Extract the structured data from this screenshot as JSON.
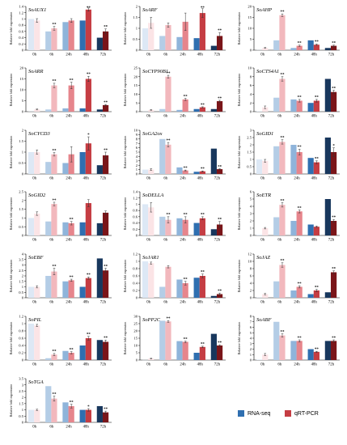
{
  "legend": {
    "rnaseq_label": "RNA-seq",
    "qrtpcr_label": "qRT-PCR"
  },
  "colors": {
    "rna": [
      "#dde8f5",
      "#b4cde6",
      "#8fb4da",
      "#2f6fb0",
      "#18375d"
    ],
    "qpcr": [
      "#fbe4e6",
      "#f2b8bd",
      "#e6858c",
      "#c53d43",
      "#7a1519"
    ]
  },
  "chart_data": [
    {
      "type": "bar",
      "gene": "SoAUX1",
      "categories": [
        "0h",
        "6h",
        "24h",
        "48h",
        "72h"
      ],
      "ylabel": "Relative fold expression",
      "ylim": [
        0,
        1.4
      ],
      "yticks": [
        0,
        0.2,
        0.4,
        0.6,
        0.8,
        1,
        1.2,
        1.4
      ],
      "ytick_labels": [
        "0",
        "0.2",
        "0.4",
        "0.6",
        "0.8",
        "1",
        "1.2",
        "1.4"
      ],
      "series": [
        {
          "name": "RNA-seq",
          "values": [
            1.0,
            0.6,
            0.9,
            0.95,
            0.4
          ]
        },
        {
          "name": "qRT-PCR",
          "values": [
            0.95,
            0.7,
            0.95,
            1.3,
            0.6
          ]
        }
      ],
      "errors": [
        0.06,
        0.06,
        0.06,
        0.05,
        0.08
      ],
      "sig": [
        "",
        "**",
        "",
        "**",
        "**"
      ]
    },
    {
      "type": "bar",
      "gene": "SoARF",
      "categories": [
        "0h",
        "6h",
        "24h",
        "48h",
        "72h"
      ],
      "ylabel": "Relative fold expression",
      "ylim": [
        0,
        2
      ],
      "yticks": [
        0,
        0.5,
        1,
        1.5,
        2
      ],
      "ytick_labels": [
        "0",
        "0.5",
        "1",
        "1.5",
        "2"
      ],
      "series": [
        {
          "name": "RNA-seq",
          "values": [
            1.0,
            0.65,
            0.6,
            0.55,
            0.2
          ]
        },
        {
          "name": "qRT-PCR",
          "values": [
            1.25,
            1.15,
            1.3,
            1.7,
            0.65
          ]
        }
      ],
      "errors": [
        0.25,
        0.1,
        0.4,
        0.2,
        0.15
      ],
      "sig": [
        "",
        "",
        "",
        "**",
        "**"
      ]
    },
    {
      "type": "bar",
      "gene": "SoAHP",
      "categories": [
        "0h",
        "6h",
        "24h",
        "48h",
        "72h"
      ],
      "ylabel": "Relative fold expression",
      "ylim": [
        0,
        20
      ],
      "yticks": [
        0,
        5,
        10,
        15,
        20
      ],
      "ytick_labels": [
        "0",
        "5",
        "10",
        "15",
        "20"
      ],
      "series": [
        {
          "name": "RNA-seq",
          "values": [
            0.1,
            4.5,
            1.0,
            4.5,
            1.0
          ]
        },
        {
          "name": "qRT-PCR",
          "values": [
            1.0,
            16.0,
            2.0,
            2.5,
            2.0
          ]
        }
      ],
      "errors": [
        0.2,
        0.6,
        0.3,
        0.3,
        0.3
      ],
      "sig": [
        "",
        "**",
        "**",
        "**",
        "**"
      ]
    },
    {
      "type": "bar",
      "gene": "SoARR",
      "categories": [
        "0h",
        "6h",
        "24h",
        "48h",
        "72h"
      ],
      "ylabel": "Relative fold expression",
      "ylim": [
        0,
        20
      ],
      "yticks": [
        0,
        5,
        10,
        15,
        20
      ],
      "ytick_labels": [
        "0",
        "5",
        "10",
        "15",
        "20"
      ],
      "series": [
        {
          "name": "RNA-seq",
          "values": [
            0.1,
            1.0,
            1.5,
            1.5,
            1.0
          ]
        },
        {
          "name": "qRT-PCR",
          "values": [
            1.0,
            12.0,
            12.0,
            15.0,
            3.0
          ]
        }
      ],
      "errors": [
        0.2,
        1.0,
        1.5,
        1.2,
        0.3
      ],
      "sig": [
        "",
        "**",
        "**",
        "**",
        "**"
      ]
    },
    {
      "type": "bar",
      "gene": "SoCYP90B1",
      "categories": [
        "0h",
        "6h",
        "24h",
        "48h",
        "72h"
      ],
      "ylabel": "Relative fold expression",
      "ylim": [
        0,
        25
      ],
      "yticks": [
        0,
        5,
        10,
        15,
        20,
        25
      ],
      "ytick_labels": [
        "0",
        "5",
        "10",
        "15",
        "20",
        "25"
      ],
      "series": [
        {
          "name": "RNA-seq",
          "values": [
            0.1,
            1.5,
            1.0,
            1.5,
            1.5
          ]
        },
        {
          "name": "qRT-PCR",
          "values": [
            1.0,
            20.0,
            7.0,
            2.5,
            6.0
          ]
        }
      ],
      "errors": [
        0.2,
        0.8,
        0.6,
        0.3,
        0.5
      ],
      "sig": [
        "",
        "**",
        "**",
        "**",
        "**"
      ]
    },
    {
      "type": "bar",
      "gene": "SoCTS4A1",
      "categories": [
        "0h",
        "6h",
        "24h",
        "48h",
        "72h"
      ],
      "ylabel": "Relative fold expression",
      "ylim": [
        0,
        10
      ],
      "yticks": [
        0,
        2,
        4,
        6,
        8,
        10
      ],
      "ytick_labels": [
        "0",
        "2",
        "4",
        "6",
        "8",
        "10"
      ],
      "series": [
        {
          "name": "RNA-seq",
          "values": [
            0.1,
            3.2,
            2.8,
            2.0,
            7.5
          ]
        },
        {
          "name": "qRT-PCR",
          "values": [
            1.0,
            7.5,
            2.5,
            2.5,
            4.5
          ]
        }
      ],
      "errors": [
        0.3,
        0.5,
        0.3,
        0.3,
        0.4
      ],
      "sig": [
        "",
        "**",
        "**",
        "**",
        "**"
      ]
    },
    {
      "type": "bar",
      "gene": "SoCYCD3",
      "categories": [
        "0h",
        "6h",
        "24h",
        "48h",
        "72h"
      ],
      "ylabel": "Relative fold expression",
      "ylim": [
        0,
        2
      ],
      "yticks": [
        0,
        0.5,
        1,
        1.5,
        2
      ],
      "ytick_labels": [
        "0",
        "0.5",
        "1",
        "1.5",
        "2"
      ],
      "series": [
        {
          "name": "RNA-seq",
          "values": [
            1.0,
            0.55,
            0.5,
            1.0,
            0.4
          ]
        },
        {
          "name": "qRT-PCR",
          "values": [
            1.0,
            0.9,
            0.9,
            1.4,
            0.85
          ]
        }
      ],
      "errors": [
        0.1,
        0.08,
        0.35,
        0.3,
        0.15
      ],
      "sig": [
        "",
        "**",
        "",
        "*",
        "**"
      ]
    },
    {
      "type": "bar",
      "gene": "SoGA2ox",
      "categories": [
        "0h",
        "6h",
        "24h",
        "48h",
        "72h"
      ],
      "ylabel": "Relative fold expression",
      "ylim": [
        0,
        10
      ],
      "yticks": [
        0,
        1,
        2,
        3,
        4,
        5,
        6,
        7,
        8,
        9,
        10
      ],
      "ytick_labels": [
        "0",
        "1",
        "2",
        "3",
        "4",
        "5",
        "6",
        "7",
        "8",
        "9",
        "10"
      ],
      "series": [
        {
          "name": "RNA-seq",
          "values": [
            1.0,
            8.0,
            1.5,
            0.5,
            5.8
          ]
        },
        {
          "name": "qRT-PCR",
          "values": [
            1.0,
            6.7,
            0.8,
            0.6,
            1.1
          ]
        }
      ],
      "errors": [
        0.2,
        0.5,
        0.1,
        0.1,
        0.1
      ],
      "sig": [
        "",
        "**",
        "**",
        "**",
        "**"
      ]
    },
    {
      "type": "bar",
      "gene": "SoGID1",
      "categories": [
        "0h",
        "6h",
        "24h",
        "48h",
        "72h"
      ],
      "ylabel": "Relative fold expression",
      "ylim": [
        0,
        3
      ],
      "yticks": [
        0,
        0.5,
        1,
        1.5,
        2,
        2.5,
        3
      ],
      "ytick_labels": [
        "0",
        "0.5",
        "1",
        "1.5",
        "2",
        "2.5",
        "3"
      ],
      "series": [
        {
          "name": "RNA-seq",
          "values": [
            1.0,
            1.9,
            2.0,
            1.1,
            2.5
          ]
        },
        {
          "name": "qRT-PCR",
          "values": [
            0.9,
            2.2,
            1.5,
            0.8,
            1.5
          ]
        }
      ],
      "errors": [
        0.1,
        0.15,
        0.2,
        0.1,
        0.3
      ],
      "sig": [
        "",
        "**",
        "**",
        "**",
        "*"
      ]
    },
    {
      "type": "bar",
      "gene": "SoGID2",
      "categories": [
        "0h",
        "6h",
        "24h",
        "48h",
        "72h"
      ],
      "ylabel": "Relative fold expression",
      "ylim": [
        0,
        2.5
      ],
      "yticks": [
        0,
        0.5,
        1,
        1.5,
        2,
        2.5
      ],
      "ytick_labels": [
        "0",
        "0.5",
        "1",
        "1.5",
        "2",
        "2.5"
      ],
      "series": [
        {
          "name": "RNA-seq",
          "values": [
            1.0,
            0.8,
            0.75,
            0.75,
            0.7
          ]
        },
        {
          "name": "qRT-PCR",
          "values": [
            1.25,
            1.8,
            0.7,
            1.85,
            1.3
          ]
        }
      ],
      "errors": [
        0.1,
        0.1,
        0.1,
        0.2,
        0.1
      ],
      "sig": [
        "",
        "**",
        "**",
        "",
        ""
      ]
    },
    {
      "type": "bar",
      "gene": "SoDELLA",
      "categories": [
        "0h",
        "6h",
        "24h",
        "48h",
        "72h"
      ],
      "ylabel": "Relative fold expression",
      "ylim": [
        0,
        1.4
      ],
      "yticks": [
        0,
        0.2,
        0.4,
        0.6,
        0.8,
        1,
        1.2,
        1.4
      ],
      "ytick_labels": [
        "0",
        "0.2",
        "0.4",
        "0.6",
        "0.8",
        "1",
        "1.2",
        "1.4"
      ],
      "series": [
        {
          "name": "RNA-seq",
          "values": [
            1.0,
            0.6,
            0.55,
            0.4,
            0.2
          ]
        },
        {
          "name": "qRT-PCR",
          "values": [
            0.9,
            0.5,
            0.5,
            0.55,
            0.35
          ]
        }
      ],
      "errors": [
        0.15,
        0.1,
        0.1,
        0.05,
        0.1
      ],
      "sig": [
        "",
        "**",
        "**",
        "**",
        "**"
      ]
    },
    {
      "type": "bar",
      "gene": "SoETR",
      "categories": [
        "0h",
        "6h",
        "24h",
        "48h",
        "72h"
      ],
      "ylabel": "Relative fold expression",
      "ylim": [
        0,
        6
      ],
      "yticks": [
        0,
        1,
        2,
        3,
        4,
        5,
        6
      ],
      "ytick_labels": [
        "0",
        "1",
        "2",
        "3",
        "4",
        "5",
        "6"
      ],
      "series": [
        {
          "name": "RNA-seq",
          "values": [
            0.1,
            2.5,
            2.0,
            1.5,
            5.0
          ]
        },
        {
          "name": "qRT-PCR",
          "values": [
            1.0,
            4.2,
            3.3,
            1.2,
            2.0
          ]
        }
      ],
      "errors": [
        0.1,
        0.3,
        0.2,
        0.1,
        0.2
      ],
      "sig": [
        "",
        "**",
        "**",
        "",
        "**"
      ]
    },
    {
      "type": "bar",
      "gene": "SoEBF",
      "categories": [
        "0h",
        "6h",
        "24h",
        "48h",
        "72h"
      ],
      "ylabel": "Relative fold expression",
      "ylim": [
        0,
        4
      ],
      "yticks": [
        0,
        0.5,
        1,
        1.5,
        2,
        2.5,
        3,
        3.5,
        4
      ],
      "ytick_labels": [
        "0",
        "0.5",
        "1",
        "1.5",
        "2",
        "2.5",
        "3",
        "3.5",
        "4"
      ],
      "series": [
        {
          "name": "RNA-seq",
          "values": [
            1.0,
            2.0,
            1.5,
            1.0,
            3.6
          ]
        },
        {
          "name": "qRT-PCR",
          "values": [
            1.0,
            2.4,
            1.6,
            1.8,
            2.5
          ]
        }
      ],
      "errors": [
        0.1,
        0.3,
        0.1,
        0.1,
        0.2
      ],
      "sig": [
        "",
        "**",
        "**",
        "**",
        "**"
      ]
    },
    {
      "type": "bar",
      "gene": "SoJAR1",
      "categories": [
        "0h",
        "6h",
        "24h",
        "48h",
        "72h"
      ],
      "ylabel": "Relative fold expression",
      "ylim": [
        0,
        1.2
      ],
      "yticks": [
        0,
        0.2,
        0.4,
        0.6,
        0.8,
        1,
        1.2
      ],
      "ytick_labels": [
        "0",
        "0.2",
        "0.4",
        "0.6",
        "0.8",
        "1",
        "1.2"
      ],
      "series": [
        {
          "name": "RNA-seq",
          "values": [
            1.0,
            0.3,
            0.5,
            0.55,
            0.05
          ]
        },
        {
          "name": "qRT-PCR",
          "values": [
            0.95,
            0.85,
            0.4,
            0.6,
            0.1
          ]
        }
      ],
      "errors": [
        0.03,
        0.03,
        0.05,
        0.05,
        0.03
      ],
      "sig": [
        "",
        "",
        "**",
        "**",
        "**"
      ]
    },
    {
      "type": "bar",
      "gene": "SoJAZ",
      "categories": [
        "0h",
        "6h",
        "24h",
        "48h",
        "72h"
      ],
      "ylabel": "Relative fold expression",
      "ylim": [
        0,
        12
      ],
      "yticks": [
        0,
        2,
        4,
        6,
        8,
        10,
        12
      ],
      "ytick_labels": [
        "0",
        "2",
        "4",
        "6",
        "8",
        "10",
        "12"
      ],
      "series": [
        {
          "name": "RNA-seq",
          "values": [
            0.1,
            4.5,
            2.0,
            1.0,
            1.5
          ]
        },
        {
          "name": "qRT-PCR",
          "values": [
            1.0,
            9.0,
            3.0,
            2.0,
            7.0
          ]
        }
      ],
      "errors": [
        0.2,
        0.6,
        0.3,
        0.3,
        0.4
      ],
      "sig": [
        "",
        "**",
        "**",
        "**",
        "**"
      ]
    },
    {
      "type": "bar",
      "gene": "SoPIL",
      "categories": [
        "0h",
        "6h",
        "24h",
        "48h",
        "72h"
      ],
      "ylabel": "Relative fold expression",
      "ylim": [
        0,
        1.2
      ],
      "yticks": [
        0,
        0.2,
        0.4,
        0.6,
        0.8,
        1,
        1.2
      ],
      "ytick_labels": [
        "0",
        "0.2",
        "0.4",
        "0.6",
        "0.8",
        "1",
        "1.2"
      ],
      "series": [
        {
          "name": "RNA-seq",
          "values": [
            1.0,
            0.05,
            0.25,
            0.4,
            0.55
          ]
        },
        {
          "name": "qRT-PCR",
          "values": [
            0.95,
            0.15,
            0.2,
            0.6,
            0.5
          ]
        }
      ],
      "errors": [
        0.03,
        0.03,
        0.03,
        0.05,
        0.05
      ],
      "sig": [
        "",
        "**",
        "**",
        "**",
        "**"
      ]
    },
    {
      "type": "bar",
      "gene": "SoPP2C",
      "categories": [
        "0h",
        "6h",
        "24h",
        "48h",
        "72h"
      ],
      "ylabel": "Relative fold expression",
      "ylim": [
        0,
        30
      ],
      "yticks": [
        0,
        5,
        10,
        15,
        20,
        25,
        30
      ],
      "ytick_labels": [
        "0",
        "5",
        "10",
        "15",
        "20",
        "25",
        "30"
      ],
      "series": [
        {
          "name": "RNA-seq",
          "values": [
            0.1,
            27.0,
            13.0,
            5.0,
            18.0
          ]
        },
        {
          "name": "qRT-PCR",
          "values": [
            1.0,
            26.5,
            12.5,
            9.0,
            10.0
          ]
        }
      ],
      "errors": [
        0.2,
        0.6,
        0.5,
        0.5,
        0.5
      ],
      "sig": [
        "",
        "**",
        "**",
        "**",
        "**"
      ]
    },
    {
      "type": "bar",
      "gene": "SoABF",
      "categories": [
        "0h",
        "6h",
        "24h",
        "48h",
        "72h"
      ],
      "ylabel": "Relative fold expression",
      "ylim": [
        0,
        8
      ],
      "yticks": [
        0,
        1,
        2,
        3,
        4,
        5,
        6,
        7,
        8
      ],
      "ytick_labels": [
        "0",
        "1",
        "2",
        "3",
        "4",
        "5",
        "6",
        "7",
        "8"
      ],
      "series": [
        {
          "name": "RNA-seq",
          "values": [
            0.1,
            7.0,
            3.5,
            2.0,
            3.5
          ]
        },
        {
          "name": "qRT-PCR",
          "values": [
            1.0,
            4.5,
            3.5,
            1.5,
            3.5
          ]
        }
      ],
      "errors": [
        0.2,
        0.3,
        0.2,
        0.1,
        0.2
      ],
      "sig": [
        "",
        "**",
        "**",
        "**",
        "**"
      ]
    },
    {
      "type": "bar",
      "gene": "SoTGA",
      "categories": [
        "0h",
        "6h",
        "24h",
        "48h",
        "72h"
      ],
      "ylabel": "Relative fold expression",
      "ylim": [
        0,
        3.5
      ],
      "yticks": [
        0,
        0.5,
        1,
        1.5,
        2,
        2.5,
        3,
        3.5
      ],
      "ytick_labels": [
        "0",
        "0.5",
        "1",
        "1.5",
        "2",
        "2.5",
        "3",
        "3.5"
      ],
      "series": [
        {
          "name": "RNA-seq",
          "values": [
            1.0,
            2.9,
            1.6,
            1.0,
            1.3
          ]
        },
        {
          "name": "qRT-PCR",
          "values": [
            1.0,
            1.9,
            1.3,
            1.0,
            0.8
          ]
        }
      ],
      "errors": [
        0.05,
        0.2,
        0.15,
        0.1,
        0.1
      ],
      "sig": [
        "",
        "**",
        "**",
        "*",
        "**"
      ]
    }
  ]
}
